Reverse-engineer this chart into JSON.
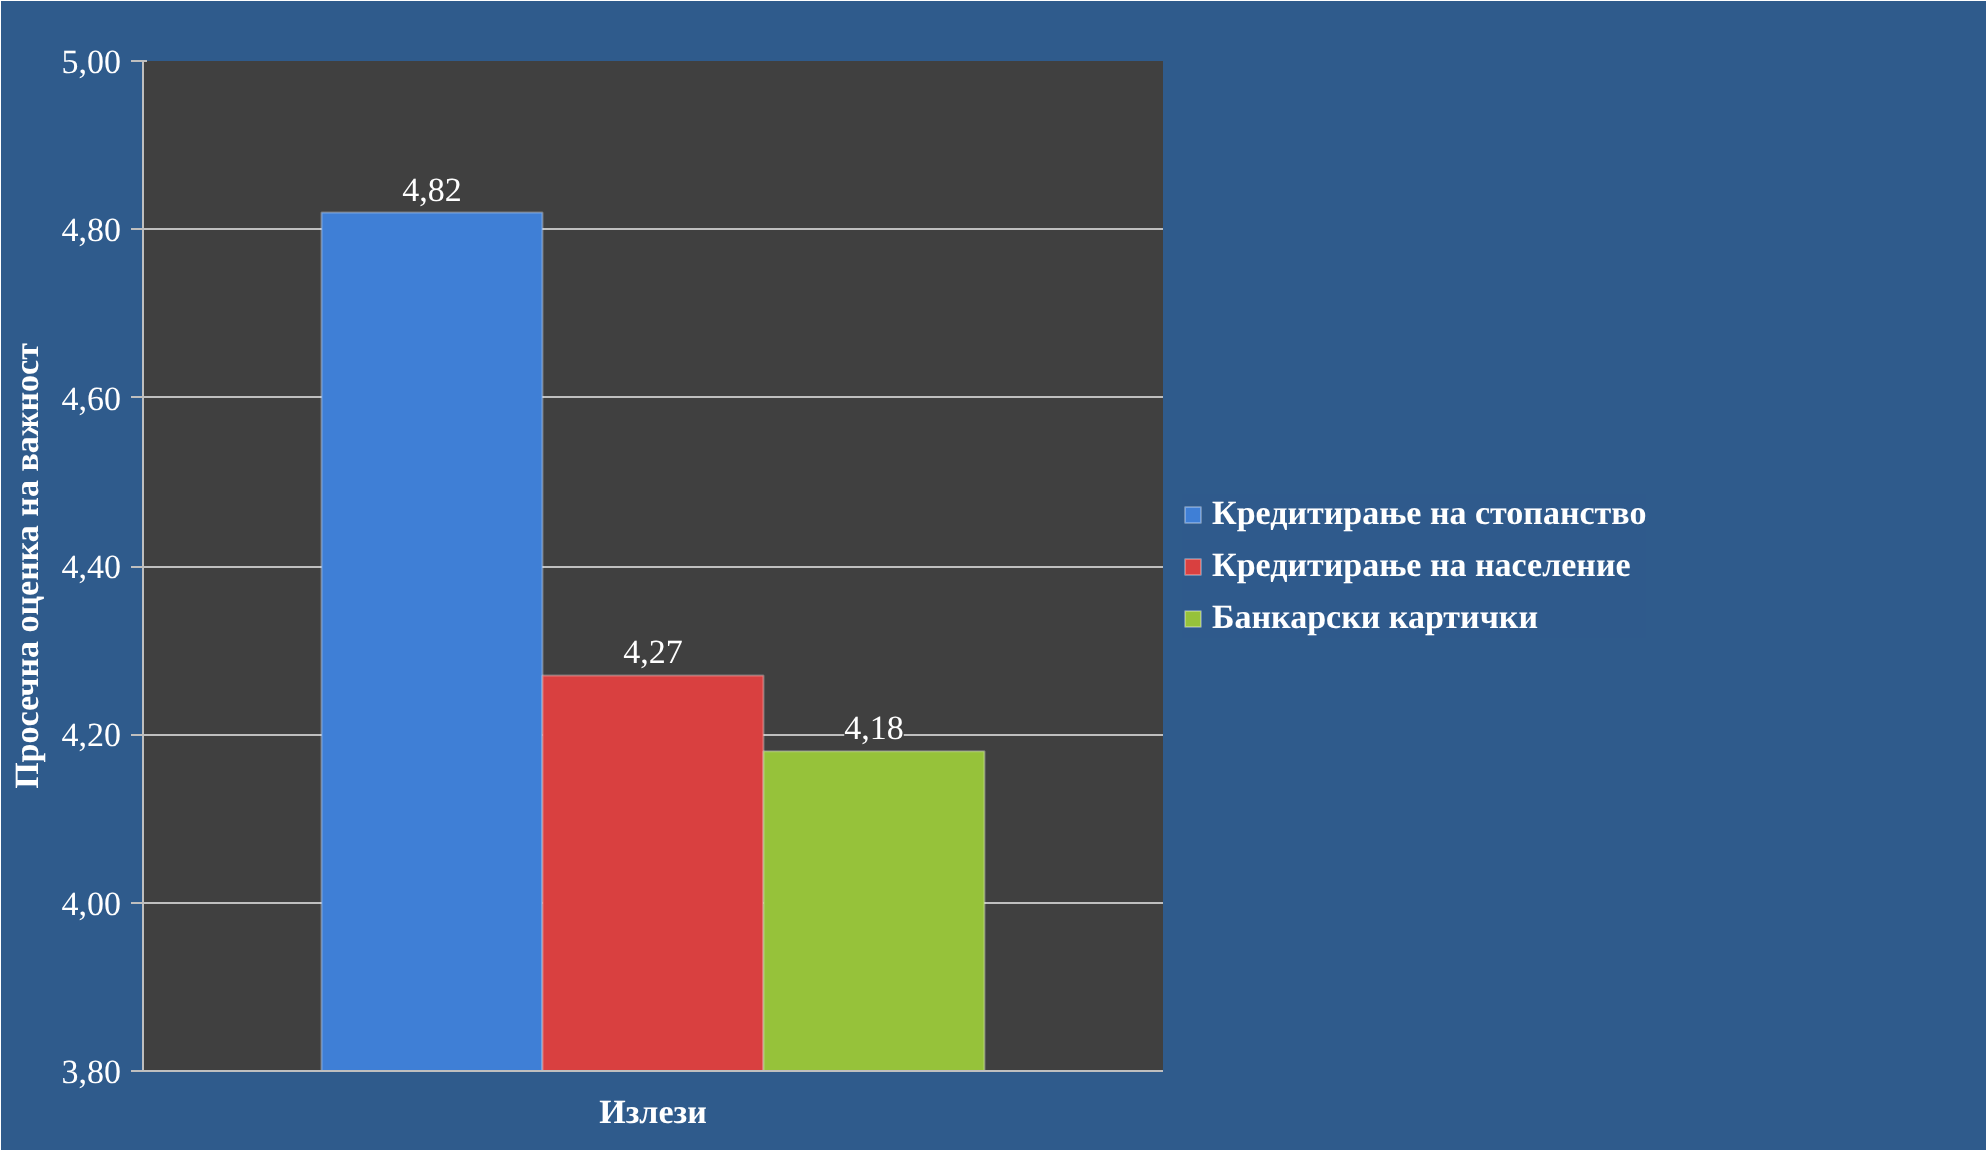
{
  "chart_data": {
    "type": "bar",
    "categories": [
      "Излези"
    ],
    "ylabel": "Просечна оценка на важност",
    "ylim": [
      3.8,
      5.0
    ],
    "yticks": [
      {
        "value": 3.8,
        "label": "3,80"
      },
      {
        "value": 4.0,
        "label": "4,00"
      },
      {
        "value": 4.2,
        "label": "4,20"
      },
      {
        "value": 4.4,
        "label": "4,40"
      },
      {
        "value": 4.6,
        "label": "4,60"
      },
      {
        "value": 4.8,
        "label": "4,80"
      },
      {
        "value": 5.0,
        "label": "5,00"
      }
    ],
    "grid": "y",
    "legend": "right",
    "series": [
      {
        "name": "Кредитирање на стопанство",
        "color": "#3f7fd6",
        "values": [
          4.82
        ],
        "value_labels": [
          "4,82"
        ]
      },
      {
        "name": "Кредитирање на население",
        "color": "#d94040",
        "values": [
          4.27
        ],
        "value_labels": [
          "4,27"
        ]
      },
      {
        "name": "Банкарски картички",
        "color": "#96c23a",
        "values": [
          4.18
        ],
        "value_labels": [
          "4,18"
        ]
      }
    ]
  }
}
